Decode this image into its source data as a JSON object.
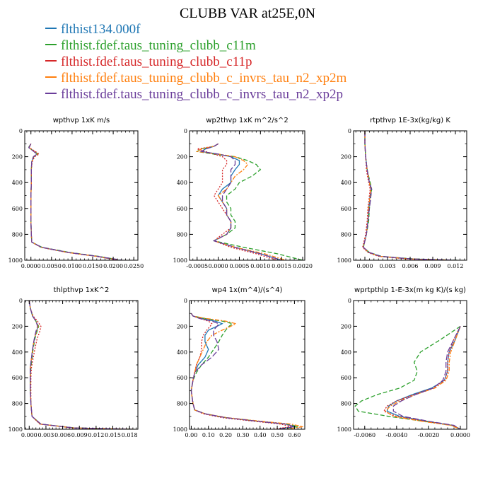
{
  "title": "CLUBB VAR at25E,0N",
  "legend": [
    {
      "label": "flthist134.000f",
      "color": "#1f77b4"
    },
    {
      "label": "flthist.fdef.taus_tuning_clubb_c11m",
      "color": "#2ca02c"
    },
    {
      "label": "flthist.fdef.taus_tuning_clubb_c11p",
      "color": "#d62728"
    },
    {
      "label": "flthist.fdef.taus_tuning_clubb_c_invrs_tau_n2_xp2m",
      "color": "#ff7f0e"
    },
    {
      "label": "flthist.fdef.taus_tuning_clubb_c_invrs_tau_n2_xp2p",
      "color": "#6a3d9a"
    }
  ],
  "chart_data": [
    {
      "type": "line",
      "title": "wpthvp  1xK m/s",
      "xlim": [
        -0.0015,
        0.026
      ],
      "ylim": [
        0,
        1000
      ],
      "y_inverted": true,
      "xticks": [
        "0.0000",
        "0.0050",
        "0.0100",
        "0.0150",
        "0.0200",
        "0.0250"
      ],
      "xtick_values": [
        0,
        0.005,
        0.01,
        0.015,
        0.02,
        0.025
      ],
      "yticks": [
        0,
        200,
        400,
        600,
        800,
        1000
      ],
      "y": [
        100,
        130,
        160,
        180,
        200,
        240,
        300,
        400,
        500,
        600,
        700,
        800,
        860,
        900,
        940,
        970,
        1000
      ],
      "series": [
        {
          "values": [
            0.0,
            -0.0005,
            0.0008,
            0.0015,
            0.0006,
            0.0002,
            0.0001,
            0.0001,
            0.0,
            0.0,
            0.0,
            0.0001,
            0.0002,
            0.0025,
            0.009,
            0.016,
            0.0215
          ]
        },
        {
          "values": [
            0.0,
            -0.0006,
            0.0009,
            0.0017,
            0.0007,
            0.0002,
            0.0001,
            0.0001,
            0.0,
            0.0,
            0.0,
            0.0001,
            0.0002,
            0.0027,
            0.0095,
            0.0165,
            0.022
          ]
        },
        {
          "values": [
            0.0,
            -0.0004,
            0.0011,
            0.002,
            0.0009,
            0.0003,
            0.0001,
            0.0001,
            0.0,
            0.0,
            0.0,
            0.0001,
            0.0002,
            0.0024,
            0.0088,
            0.0158,
            0.0212
          ]
        },
        {
          "values": [
            0.0,
            -0.0005,
            0.0008,
            0.0015,
            0.0006,
            0.0002,
            0.0001,
            0.0001,
            0.0,
            0.0,
            0.0,
            0.0001,
            0.0002,
            0.0025,
            0.009,
            0.016,
            0.0218
          ]
        },
        {
          "values": [
            0.0,
            -0.0005,
            0.0007,
            0.0014,
            0.0006,
            0.0002,
            0.0001,
            0.0001,
            0.0,
            0.0,
            0.0,
            0.0001,
            0.0002,
            0.0026,
            0.0092,
            0.0162,
            0.0222
          ]
        }
      ]
    },
    {
      "type": "line",
      "title": "wp2thvp  1xK m^2/s^2",
      "xlim": [
        -0.00068,
        0.00205
      ],
      "ylim": [
        0,
        1000
      ],
      "y_inverted": true,
      "xticks": [
        "-0.0005",
        "0.0000",
        "0.0005",
        "0.0010",
        "0.0015",
        "0.0020"
      ],
      "xtick_values": [
        -0.0005,
        0,
        0.0005,
        0.001,
        0.0015,
        0.002
      ],
      "yticks": [
        0,
        200,
        400,
        600,
        800,
        1000
      ],
      "y": [
        100,
        120,
        140,
        160,
        180,
        200,
        230,
        260,
        300,
        350,
        400,
        450,
        500,
        550,
        600,
        650,
        700,
        750,
        800,
        850,
        900,
        950,
        1000
      ],
      "series": [
        {
          "values": [
            0.0,
            -0.0001,
            -0.0003,
            -0.0004,
            0.0,
            0.0003,
            0.0005,
            0.0005,
            0.0004,
            0.0003,
            0.0003,
            0.0001,
            0.0,
            0.0001,
            0.0002,
            0.0002,
            0.0003,
            0.0003,
            0.0002,
            -0.0001,
            0.0004,
            0.001,
            0.0015
          ]
        },
        {
          "values": [
            0.0,
            -0.0001,
            -0.0004,
            -0.0005,
            -0.0001,
            0.0004,
            0.0007,
            0.0009,
            0.001,
            0.0008,
            0.0005,
            0.0004,
            0.0002,
            0.0002,
            0.0003,
            0.0003,
            0.0004,
            0.0004,
            0.0002,
            -0.0001,
            0.0006,
            0.0014,
            0.002
          ]
        },
        {
          "values": [
            0.0,
            -0.0001,
            -0.0005,
            -0.0003,
            -0.0001,
            0.0001,
            0.0002,
            0.0002,
            0.0001,
            0.0001,
            0.0001,
            0.0,
            -0.0001,
            0.0,
            0.0001,
            0.0002,
            0.0003,
            0.0003,
            0.0001,
            -0.0001,
            0.0003,
            0.0009,
            0.0014
          ]
        },
        {
          "values": [
            0.0,
            -0.0001,
            -0.0004,
            -0.0005,
            0.0,
            0.0004,
            0.0006,
            0.0007,
            0.0006,
            0.0004,
            0.0003,
            0.0002,
            0.0,
            0.0001,
            0.0002,
            0.0002,
            0.0003,
            0.0003,
            0.0002,
            -0.0001,
            0.0004,
            0.0011,
            0.0016
          ]
        },
        {
          "values": [
            0.0,
            -0.0001,
            -0.0003,
            -0.0004,
            0.0,
            0.0003,
            0.0004,
            0.0004,
            0.0003,
            0.0003,
            0.0003,
            0.0002,
            0.0001,
            0.0001,
            0.0002,
            0.0002,
            0.0003,
            0.0003,
            0.0002,
            -0.0001,
            0.0004,
            0.001,
            0.0015
          ]
        }
      ]
    },
    {
      "type": "line",
      "title": "rtpthvp  1E-3x(kg/kg) K",
      "xlim": [
        -0.0015,
        0.0135
      ],
      "ylim": [
        0,
        1000
      ],
      "y_inverted": true,
      "xticks": [
        "0.000",
        "0.003",
        "0.006",
        "0.009",
        "0.012"
      ],
      "xtick_values": [
        0,
        0.003,
        0.006,
        0.009,
        0.012
      ],
      "yticks": [
        0,
        200,
        400,
        600,
        800,
        1000
      ],
      "y": [
        0,
        100,
        200,
        300,
        400,
        450,
        500,
        600,
        700,
        800,
        850,
        900,
        940,
        970,
        990,
        1000
      ],
      "series": [
        {
          "values": [
            0.0,
            0.0,
            0.0001,
            0.0003,
            0.0006,
            0.0008,
            0.0007,
            0.0005,
            0.0004,
            0.0002,
            0.0,
            -0.0002,
            0.0005,
            0.002,
            0.006,
            0.012
          ]
        },
        {
          "values": [
            0.0,
            0.0,
            0.0001,
            0.0003,
            0.0007,
            0.0009,
            0.0008,
            0.0006,
            0.0005,
            0.0002,
            0.0,
            -0.0002,
            0.0006,
            0.0022,
            0.0065,
            0.0125
          ]
        },
        {
          "values": [
            0.0,
            0.0,
            0.0001,
            0.0002,
            0.0005,
            0.0007,
            0.0006,
            0.0004,
            0.0003,
            0.0001,
            -0.0001,
            -0.0003,
            0.0004,
            0.0018,
            0.0055,
            0.0115
          ]
        },
        {
          "values": [
            0.0,
            0.0,
            0.0001,
            0.0003,
            0.0006,
            0.0008,
            0.0007,
            0.0005,
            0.0004,
            0.0002,
            0.0,
            -0.0002,
            0.0005,
            0.002,
            0.006,
            0.012
          ]
        },
        {
          "values": [
            0.0,
            0.0,
            0.0001,
            0.0003,
            0.0006,
            0.0009,
            0.0008,
            0.0006,
            0.0004,
            0.0002,
            0.0,
            -0.0002,
            0.0006,
            0.0021,
            0.0062,
            0.0122
          ]
        }
      ]
    },
    {
      "type": "line",
      "title": "thlpthvp  1xK^2",
      "xlim": [
        -0.0008,
        0.0195
      ],
      "ylim": [
        0,
        1000
      ],
      "y_inverted": true,
      "xticks": [
        "0.000",
        "0.003",
        "0.006",
        "0.009",
        "0.012",
        "0.015",
        "0.018"
      ],
      "xtick_values": [
        0,
        0.003,
        0.006,
        0.009,
        0.012,
        0.015,
        0.018
      ],
      "yticks": [
        0,
        200,
        400,
        600,
        800,
        1000
      ],
      "y": [
        0,
        60,
        120,
        160,
        200,
        240,
        300,
        380,
        450,
        520,
        600,
        700,
        800,
        900,
        960,
        990,
        1000
      ],
      "series": [
        {
          "values": [
            0.0,
            0.0002,
            0.0006,
            0.0012,
            0.0016,
            0.0013,
            0.0009,
            0.0006,
            0.0004,
            0.0002,
            0.0002,
            0.0002,
            0.0003,
            0.0005,
            0.002,
            0.008,
            0.0185
          ]
        },
        {
          "values": [
            0.0,
            0.0002,
            0.0006,
            0.0012,
            0.0017,
            0.0014,
            0.001,
            0.0007,
            0.0005,
            0.0003,
            0.0002,
            0.0002,
            0.0003,
            0.0005,
            0.0021,
            0.0082,
            0.0188
          ]
        },
        {
          "values": [
            0.0,
            0.0002,
            0.0007,
            0.0015,
            0.0021,
            0.0019,
            0.0014,
            0.001,
            0.0007,
            0.0004,
            0.0003,
            0.0003,
            0.0003,
            0.0005,
            0.0019,
            0.0078,
            0.0182
          ]
        },
        {
          "values": [
            0.0,
            0.0002,
            0.0006,
            0.0012,
            0.0016,
            0.0013,
            0.0009,
            0.0006,
            0.0004,
            0.0002,
            0.0002,
            0.0002,
            0.0003,
            0.0005,
            0.002,
            0.008,
            0.0186
          ]
        },
        {
          "values": [
            0.0,
            0.0002,
            0.0006,
            0.0012,
            0.0015,
            0.0012,
            0.0009,
            0.0006,
            0.0004,
            0.0002,
            0.0002,
            0.0002,
            0.0003,
            0.0005,
            0.0021,
            0.0081,
            0.0187
          ]
        }
      ]
    },
    {
      "type": "line",
      "title": "wp4  1x(m^4)/(s^4)",
      "xlim": [
        -0.01,
        0.66
      ],
      "ylim": [
        0,
        1000
      ],
      "y_inverted": true,
      "xticks": [
        "0.00",
        "0.10",
        "0.20",
        "0.30",
        "0.40",
        "0.50",
        "0.60"
      ],
      "xtick_values": [
        0,
        0.1,
        0.2,
        0.3,
        0.4,
        0.5,
        0.6
      ],
      "yticks": [
        0,
        200,
        400,
        600,
        800,
        1000
      ],
      "y": [
        100,
        120,
        140,
        160,
        180,
        200,
        230,
        270,
        320,
        380,
        440,
        500,
        560,
        620,
        700,
        800,
        850,
        880,
        910,
        940,
        960,
        980,
        1000
      ],
      "series": [
        {
          "values": [
            0.0,
            0.01,
            0.06,
            0.14,
            0.18,
            0.15,
            0.1,
            0.08,
            0.08,
            0.1,
            0.08,
            0.04,
            0.02,
            0.01,
            0.0,
            0.01,
            0.02,
            0.08,
            0.2,
            0.4,
            0.55,
            0.6,
            0.5
          ]
        },
        {
          "values": [
            0.0,
            0.01,
            0.08,
            0.18,
            0.24,
            0.22,
            0.2,
            0.18,
            0.16,
            0.13,
            0.1,
            0.06,
            0.03,
            0.01,
            0.0,
            0.01,
            0.02,
            0.08,
            0.2,
            0.4,
            0.56,
            0.62,
            0.52
          ]
        },
        {
          "values": [
            0.0,
            0.01,
            0.05,
            0.1,
            0.12,
            0.11,
            0.09,
            0.07,
            0.06,
            0.06,
            0.05,
            0.03,
            0.02,
            0.01,
            0.0,
            0.01,
            0.02,
            0.07,
            0.18,
            0.38,
            0.52,
            0.58,
            0.48
          ]
        },
        {
          "values": [
            0.0,
            0.01,
            0.09,
            0.2,
            0.26,
            0.23,
            0.18,
            0.12,
            0.09,
            0.07,
            0.05,
            0.03,
            0.02,
            0.01,
            0.0,
            0.01,
            0.02,
            0.08,
            0.21,
            0.42,
            0.58,
            0.65,
            0.55
          ]
        },
        {
          "values": [
            0.0,
            0.01,
            0.05,
            0.12,
            0.16,
            0.15,
            0.13,
            0.13,
            0.15,
            0.16,
            0.12,
            0.06,
            0.02,
            0.01,
            0.0,
            0.01,
            0.02,
            0.08,
            0.2,
            0.4,
            0.55,
            0.6,
            0.5
          ]
        }
      ]
    },
    {
      "type": "line",
      "title": "wprtpthlp  1-E-3x(m kg K)/(s kg)",
      "xlim": [
        -0.0067,
        0.0004
      ],
      "ylim": [
        0,
        1000
      ],
      "y_inverted": true,
      "xticks": [
        "-0.0060",
        "-0.0040",
        "-0.0020",
        "0.0000"
      ],
      "xtick_values": [
        -0.006,
        -0.004,
        -0.002,
        0
      ],
      "yticks": [
        0,
        200,
        400,
        600,
        800,
        1000
      ],
      "y": [
        200,
        300,
        400,
        480,
        550,
        620,
        680,
        730,
        780,
        820,
        860,
        900,
        940,
        970,
        1000
      ],
      "series": [
        {
          "values": [
            0.0,
            -0.0003,
            -0.0007,
            -0.0008,
            -0.0008,
            -0.001,
            -0.0018,
            -0.003,
            -0.004,
            -0.0045,
            -0.0046,
            -0.0038,
            -0.002,
            -0.0005,
            0.0
          ]
        },
        {
          "values": [
            0.0,
            -0.0012,
            -0.0025,
            -0.0029,
            -0.0027,
            -0.0029,
            -0.0038,
            -0.0052,
            -0.0062,
            -0.0066,
            -0.0064,
            -0.0045,
            -0.0022,
            -0.0005,
            0.0
          ]
        },
        {
          "values": [
            0.0,
            -0.0004,
            -0.0007,
            -0.0008,
            -0.0008,
            -0.001,
            -0.0017,
            -0.0029,
            -0.004,
            -0.0046,
            -0.0048,
            -0.004,
            -0.0021,
            -0.0005,
            0.0
          ]
        },
        {
          "values": [
            0.0,
            -0.0003,
            -0.0006,
            -0.0007,
            -0.0007,
            -0.0009,
            -0.0016,
            -0.0028,
            -0.0038,
            -0.0044,
            -0.0047,
            -0.0042,
            -0.0023,
            -0.0006,
            0.0
          ]
        },
        {
          "values": [
            0.0,
            -0.0004,
            -0.0008,
            -0.0009,
            -0.0009,
            -0.0011,
            -0.0017,
            -0.0028,
            -0.0037,
            -0.0042,
            -0.0042,
            -0.0036,
            -0.0019,
            -0.0004,
            0.0
          ]
        }
      ]
    }
  ]
}
